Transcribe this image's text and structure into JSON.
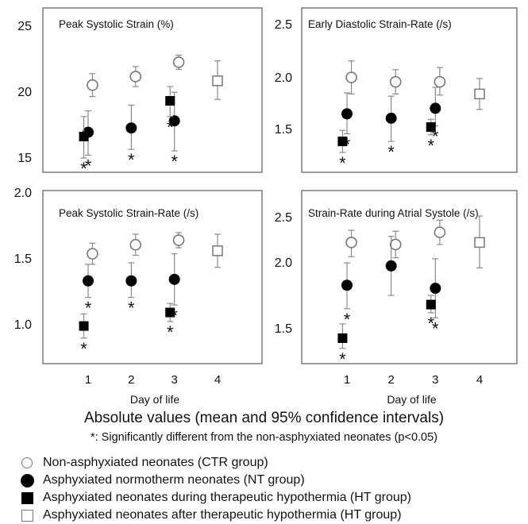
{
  "figure": {
    "xlabel": "Day of life",
    "footer_title": "Absolute values (mean and 95% confidence intervals)",
    "footer_note": "*: Significantly different from the non-asphyxiated neonates (p<0.05)"
  },
  "legend": [
    {
      "marker": "open-circle",
      "label": "Non-asphyxiated neonates (CTR group)"
    },
    {
      "marker": "filled-circle",
      "label": "Asphyxiated normotherm neonates (NT group)"
    },
    {
      "marker": "filled-square",
      "label": "Asphyxiated neonates during therapeutic hypothermia (HT group)"
    },
    {
      "marker": "open-square",
      "label": "Asphyxiated neonates after therapeutic hypothermia (HT group)"
    }
  ],
  "colors": {
    "filled": "#000000",
    "open_edge": "#777777",
    "errorbar": "#8a8a8a",
    "frame": "#666666"
  },
  "chart_data": [
    {
      "type": "scatter",
      "title": "Peak Systolic Strain (%)",
      "xlabel": "",
      "ylabel": "",
      "ylim": [
        14.5,
        26
      ],
      "yticks": [
        "15",
        "20",
        "25"
      ],
      "xticks": [],
      "series": [
        {
          "marker": "open-circle",
          "points": [
            {
              "x": 1.1,
              "y": 20.6,
              "lo": 19.8,
              "hi": 21.4,
              "sig": false
            },
            {
              "x": 2.1,
              "y": 21.2,
              "lo": 20.5,
              "hi": 21.9,
              "sig": false
            },
            {
              "x": 3.1,
              "y": 22.2,
              "lo": 21.7,
              "hi": 22.7,
              "sig": false
            }
          ]
        },
        {
          "marker": "filled-circle",
          "points": [
            {
              "x": 1.0,
              "y": 17.3,
              "lo": 15.7,
              "hi": 18.8,
              "sig": true
            },
            {
              "x": 2.0,
              "y": 17.6,
              "lo": 16.1,
              "hi": 19.2,
              "sig": true
            },
            {
              "x": 3.0,
              "y": 18.1,
              "lo": 16.0,
              "hi": 20.1,
              "sig": true
            }
          ]
        },
        {
          "marker": "filled-square",
          "points": [
            {
              "x": 0.9,
              "y": 17.0,
              "lo": 15.5,
              "hi": 18.4,
              "sig": true
            },
            {
              "x": 2.9,
              "y": 19.5,
              "lo": 18.4,
              "hi": 20.5,
              "sig": true
            }
          ]
        },
        {
          "marker": "open-square",
          "points": [
            {
              "x": 4.0,
              "y": 20.9,
              "lo": 19.6,
              "hi": 22.3,
              "sig": false
            }
          ]
        }
      ]
    },
    {
      "type": "scatter",
      "title": "Early Diastolic Strain-Rate (/s)",
      "xlabel": "",
      "ylabel": "",
      "ylim": [
        1.18,
        2.67
      ],
      "yticks": [
        "1.5",
        "2.0",
        "2.5"
      ],
      "xticks": [],
      "series": [
        {
          "marker": "open-circle",
          "points": [
            {
              "x": 1.1,
              "y": 2.04,
              "lo": 1.89,
              "hi": 2.19,
              "sig": false
            },
            {
              "x": 2.1,
              "y": 2.0,
              "lo": 1.89,
              "hi": 2.11,
              "sig": false
            },
            {
              "x": 3.1,
              "y": 2.0,
              "lo": 1.88,
              "hi": 2.13,
              "sig": false
            }
          ]
        },
        {
          "marker": "filled-circle",
          "points": [
            {
              "x": 1.0,
              "y": 1.71,
              "lo": 1.53,
              "hi": 1.9,
              "sig": true
            },
            {
              "x": 2.0,
              "y": 1.67,
              "lo": 1.46,
              "hi": 1.87,
              "sig": true
            },
            {
              "x": 3.0,
              "y": 1.76,
              "lo": 1.6,
              "hi": 1.95,
              "sig": true
            }
          ]
        },
        {
          "marker": "filled-square",
          "points": [
            {
              "x": 0.9,
              "y": 1.46,
              "lo": 1.36,
              "hi": 1.56,
              "sig": true
            },
            {
              "x": 2.9,
              "y": 1.59,
              "lo": 1.52,
              "hi": 1.66,
              "sig": true
            }
          ]
        },
        {
          "marker": "open-square",
          "points": [
            {
              "x": 4.0,
              "y": 1.89,
              "lo": 1.75,
              "hi": 2.03,
              "sig": false
            }
          ]
        }
      ]
    },
    {
      "type": "scatter",
      "title": "Peak Systolic Strain-Rate (/s)",
      "xlabel": "Day of life",
      "ylabel": "",
      "ylim": [
        0.85,
        2.0
      ],
      "yticks": [
        "1.0",
        "1.5",
        "2.0"
      ],
      "xticks": [
        "1",
        "2",
        "3",
        "4"
      ],
      "series": [
        {
          "marker": "open-circle",
          "points": [
            {
              "x": 1.1,
              "y": 1.58,
              "lo": 1.51,
              "hi": 1.65,
              "sig": false
            },
            {
              "x": 2.1,
              "y": 1.64,
              "lo": 1.57,
              "hi": 1.71,
              "sig": false
            },
            {
              "x": 3.1,
              "y": 1.67,
              "lo": 1.62,
              "hi": 1.72,
              "sig": false
            }
          ]
        },
        {
          "marker": "filled-circle",
          "points": [
            {
              "x": 1.0,
              "y": 1.4,
              "lo": 1.29,
              "hi": 1.51,
              "sig": true
            },
            {
              "x": 2.0,
              "y": 1.4,
              "lo": 1.29,
              "hi": 1.52,
              "sig": true
            },
            {
              "x": 3.0,
              "y": 1.41,
              "lo": 1.24,
              "hi": 1.58,
              "sig": true
            }
          ]
        },
        {
          "marker": "filled-square",
          "points": [
            {
              "x": 0.9,
              "y": 1.1,
              "lo": 1.02,
              "hi": 1.18,
              "sig": true
            },
            {
              "x": 2.9,
              "y": 1.19,
              "lo": 1.13,
              "hi": 1.25,
              "sig": true
            }
          ]
        },
        {
          "marker": "open-square",
          "points": [
            {
              "x": 4.0,
              "y": 1.6,
              "lo": 1.49,
              "hi": 1.71,
              "sig": false
            }
          ]
        }
      ]
    },
    {
      "type": "scatter",
      "title": "Strain-Rate during Atrial Systole (/s)",
      "xlabel": "Day of life",
      "ylabel": "",
      "ylim": [
        1.05,
        2.75
      ],
      "yticks": [
        "1.5",
        "2.0",
        "2.5"
      ],
      "xticks": [
        "1",
        "2",
        "3",
        "4"
      ],
      "series": [
        {
          "marker": "open-circle",
          "points": [
            {
              "x": 1.1,
              "y": 2.24,
              "lo": 2.1,
              "hi": 2.36,
              "sig": false
            },
            {
              "x": 2.1,
              "y": 2.22,
              "lo": 2.09,
              "hi": 2.35,
              "sig": false
            },
            {
              "x": 3.1,
              "y": 2.34,
              "lo": 2.22,
              "hi": 2.46,
              "sig": false
            }
          ]
        },
        {
          "marker": "filled-circle",
          "points": [
            {
              "x": 1.0,
              "y": 1.82,
              "lo": 1.59,
              "hi": 2.04,
              "sig": true
            },
            {
              "x": 2.0,
              "y": 2.01,
              "lo": 1.72,
              "hi": 2.3,
              "sig": false
            },
            {
              "x": 3.0,
              "y": 1.79,
              "lo": 1.5,
              "hi": 2.08,
              "sig": true
            }
          ]
        },
        {
          "marker": "filled-square",
          "points": [
            {
              "x": 0.9,
              "y": 1.3,
              "lo": 1.2,
              "hi": 1.44,
              "sig": true
            },
            {
              "x": 2.9,
              "y": 1.63,
              "lo": 1.55,
              "hi": 1.72,
              "sig": true
            }
          ]
        },
        {
          "marker": "open-square",
          "points": [
            {
              "x": 4.0,
              "y": 2.24,
              "lo": 1.99,
              "hi": 2.5,
              "sig": false
            }
          ]
        }
      ]
    }
  ]
}
